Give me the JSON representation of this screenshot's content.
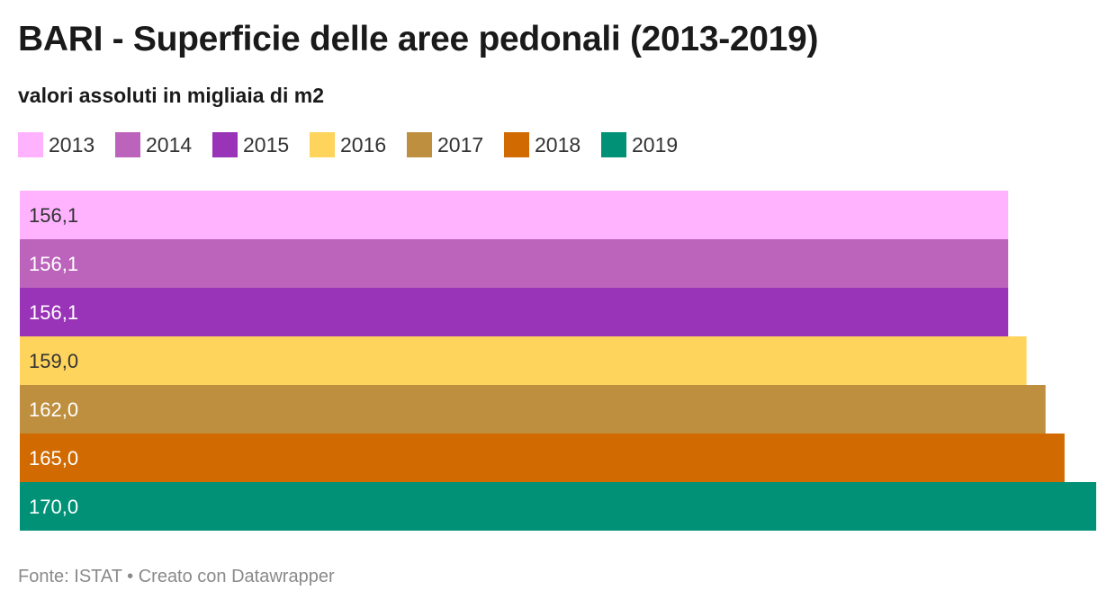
{
  "title": "BARI - Superficie delle aree pedonali (2013-2019)",
  "subtitle": "valori assoluti in migliaia di m2",
  "footer": "Fonte: ISTAT • Creato con Datawrapper",
  "legend": [
    {
      "label": "2013",
      "color": "#ffb3ff"
    },
    {
      "label": "2014",
      "color": "#bc64bc"
    },
    {
      "label": "2015",
      "color": "#9933b7"
    },
    {
      "label": "2016",
      "color": "#ffd45c"
    },
    {
      "label": "2017",
      "color": "#bf8f40"
    },
    {
      "label": "2018",
      "color": "#d16a00"
    },
    {
      "label": "2019",
      "color": "#009177"
    }
  ],
  "chart_data": {
    "type": "bar",
    "orientation": "horizontal",
    "title": "BARI - Superficie delle aree pedonali (2013-2019)",
    "subtitle": "valori assoluti in migliaia di m2",
    "categories": [
      "2013",
      "2014",
      "2015",
      "2016",
      "2017",
      "2018",
      "2019"
    ],
    "values": [
      156.1,
      156.1,
      156.1,
      159.0,
      162.0,
      165.0,
      170.0
    ],
    "value_labels": [
      "156,1",
      "156,1",
      "156,1",
      "159,0",
      "162,0",
      "165,0",
      "170,0"
    ],
    "colors": [
      "#ffb3ff",
      "#bc64bc",
      "#9933b7",
      "#ffd45c",
      "#bf8f40",
      "#d16a00",
      "#009177"
    ],
    "label_colors": [
      "#333333",
      "#ffffff",
      "#ffffff",
      "#333333",
      "#ffffff",
      "#ffffff",
      "#ffffff"
    ],
    "xlabel": "",
    "ylabel": "",
    "xlim": [
      0,
      170
    ],
    "grid": false,
    "legend_position": "top-left"
  }
}
